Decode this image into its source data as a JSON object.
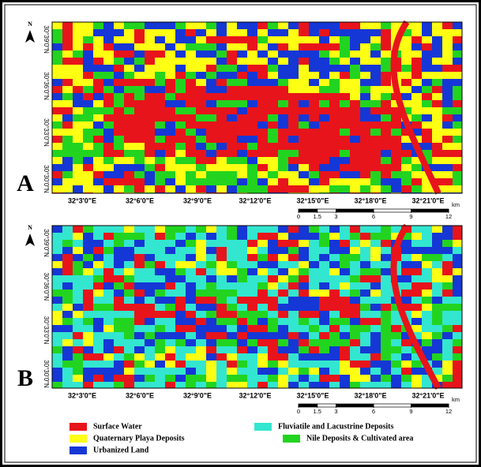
{
  "panels": [
    {
      "label": "A",
      "north": "N",
      "lat_labels": [
        "30°39'0\"N",
        "30°36'0\"N",
        "30°33'0\"N",
        "30°30'0\"N"
      ],
      "lon_labels": [
        "32°3'0\"E",
        "32°6'0\"E",
        "32°9'0\"E",
        "32°12'0\"E",
        "32°15'0\"E",
        "32°18'0\"E",
        "32°21'0\"E"
      ],
      "scale": [
        0,
        1.5,
        3,
        6,
        9,
        12
      ],
      "scale_unit": "km"
    },
    {
      "label": "B",
      "north": "N",
      "lat_labels": [
        "30°39'0\"N",
        "30°36'0\"N",
        "30°33'0\"N",
        "30°30'0\"N"
      ],
      "lon_labels": [
        "32°3'0\"E",
        "32°6'0\"E",
        "32°9'0\"E",
        "32°12'0\"E",
        "32°15'0\"E",
        "32°18'0\"E",
        "32°21'0\"E"
      ],
      "scale": [
        0,
        1.5,
        3,
        6,
        9,
        12
      ],
      "scale_unit": "km"
    }
  ],
  "legend": [
    {
      "name": "Surface Water",
      "color": "#e8141b"
    },
    {
      "name": "Quaternary Playa Deposits",
      "color": "#ffff14"
    },
    {
      "name": "Urbanized Land",
      "color": "#1537d6"
    },
    {
      "name": "Fluviatile and Lacustrine Deposits",
      "color": "#33e6cf"
    },
    {
      "name": "Nile Deposits & Cultivated area",
      "color": "#22d41f"
    }
  ]
}
